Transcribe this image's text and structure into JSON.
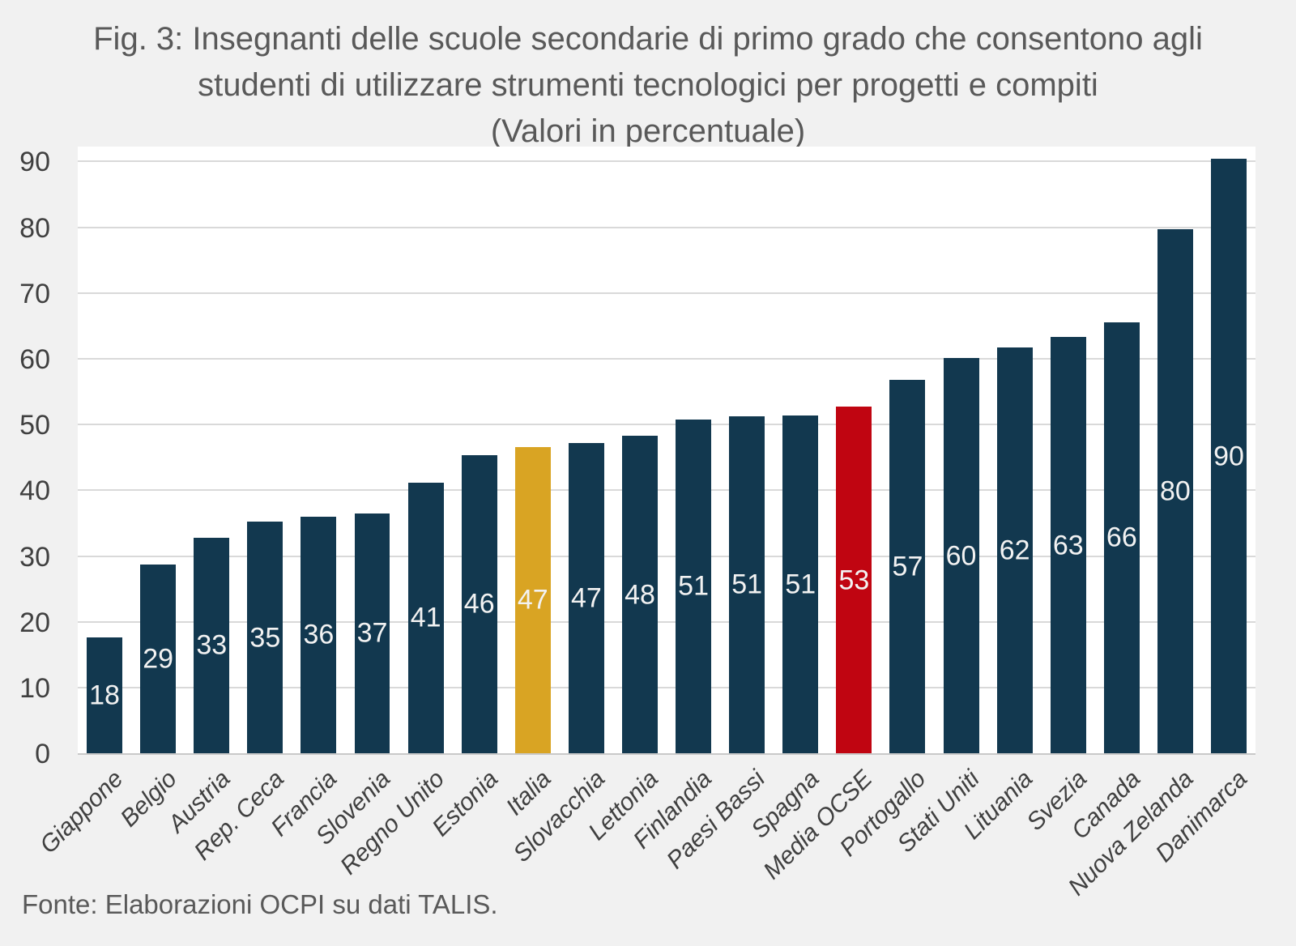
{
  "figure": {
    "title_lines": [
      "Fig. 3: Insegnanti delle scuole secondarie di primo grado che consentono agli",
      "studenti di utilizzare strumenti tecnologici per progetti e compiti",
      "(Valori in percentuale)"
    ],
    "source": "Fonte: Elaborazioni OCPI su dati TALIS."
  },
  "colors": {
    "background": "#F1F1F1",
    "plot_background": "#FFFFFF",
    "gridline": "#D9D9D9",
    "axis_line": "#C9C9C9",
    "title_text": "#595959",
    "axis_text": "#404040",
    "value_label_text": "#F2F2F2",
    "bar_default": "#12384F",
    "bar_italia": "#D9A423",
    "bar_media_ocse": "#C00511"
  },
  "chart_data": {
    "type": "bar",
    "title": "Fig. 3: Insegnanti delle scuole secondarie di primo grado che consentono agli studenti di utilizzare strumenti tecnologici per progetti e compiti (Valori in percentuale)",
    "xlabel": "",
    "ylabel": "",
    "grid": "horizontal",
    "legend": "none",
    "yticks": [
      0,
      10,
      20,
      30,
      40,
      50,
      60,
      70,
      80,
      90
    ],
    "ylim": [
      0,
      92.4
    ],
    "categories": [
      "Giappone",
      "Belgio",
      "Austria",
      "Rep. Ceca",
      "Francia",
      "Slovenia",
      "Regno Unito",
      "Estonia",
      "Italia",
      "Slovacchia",
      "Lettonia",
      "Finlandia",
      "Paesi Bassi",
      "Spagna",
      "Media OCSE",
      "Portogallo",
      "Stati Uniti",
      "Lituania",
      "Svezia",
      "Canada",
      "Nuova Zelanda",
      "Danimarca"
    ],
    "values": [
      17.8,
      28.8,
      32.9,
      35.3,
      36.1,
      36.6,
      41.3,
      45.5,
      46.7,
      47.3,
      48.4,
      50.9,
      51.4,
      51.5,
      52.8,
      56.9,
      60.2,
      61.9,
      63.4,
      65.7,
      79.8,
      90.5
    ],
    "labels": [
      "18",
      "29",
      "33",
      "35",
      "36",
      "37",
      "41",
      "46",
      "47",
      "47",
      "48",
      "51",
      "51",
      "51",
      "53",
      "57",
      "60",
      "62",
      "63",
      "66",
      "80",
      "90"
    ],
    "bar_color_keys": [
      "default",
      "default",
      "default",
      "default",
      "default",
      "default",
      "default",
      "default",
      "italia",
      "default",
      "default",
      "default",
      "default",
      "default",
      "media_ocse",
      "default",
      "default",
      "default",
      "default",
      "default",
      "default",
      "default"
    ],
    "highlights": {
      "Italia": "gold bar",
      "Media OCSE": "red bar"
    }
  }
}
